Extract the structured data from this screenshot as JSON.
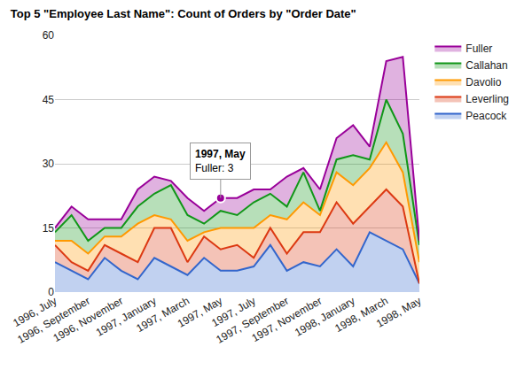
{
  "chart_data": {
    "type": "area",
    "title": "Top 5 \"Employee Last Name\": Count of Orders by \"Order Date\"",
    "stacked": true,
    "grid": true,
    "legend": "right",
    "categories": [
      "1996, July",
      null,
      "1996, September",
      null,
      "1996, November",
      null,
      "1997, January",
      null,
      "1997, March",
      null,
      "1997, May",
      null,
      "1997, July",
      null,
      "1997, September",
      null,
      "1997, November",
      null,
      "1998, January",
      null,
      "1998, March",
      null,
      "1998, May"
    ],
    "series": [
      {
        "name": "Peacock",
        "color": "#3366cc",
        "values": [
          7,
          5,
          3,
          8,
          5,
          3,
          8,
          6,
          4,
          8,
          5,
          5,
          6,
          11,
          5,
          7,
          6,
          10,
          6,
          14,
          12,
          10,
          2
        ]
      },
      {
        "name": "Leverling",
        "color": "#dc3912",
        "values": [
          4,
          2,
          2,
          3,
          4,
          4,
          7,
          9,
          3,
          5,
          5,
          6,
          2,
          4,
          4,
          7,
          8,
          11,
          10,
          6,
          12,
          10,
          0
        ]
      },
      {
        "name": "Davolio",
        "color": "#ff9900",
        "values": [
          1,
          5,
          4,
          2,
          4,
          9,
          3,
          2,
          5,
          1,
          5,
          4,
          7,
          3,
          8,
          7,
          4,
          7,
          9,
          9,
          11,
          8,
          5
        ]
      },
      {
        "name": "Callahan",
        "color": "#109618",
        "values": [
          2,
          6,
          3,
          2,
          2,
          4,
          5,
          8,
          6,
          2,
          4,
          3,
          6,
          5,
          3,
          7,
          1,
          3,
          7,
          2,
          10,
          9,
          4
        ]
      },
      {
        "name": "Fuller",
        "color": "#990099",
        "values": [
          1,
          2,
          5,
          2,
          2,
          4,
          4,
          1,
          4,
          3,
          3,
          4,
          3,
          1,
          7,
          1,
          5,
          5,
          7,
          3,
          9,
          18,
          1
        ]
      }
    ],
    "ylim": [
      0,
      60
    ],
    "yticks": [
      0,
      15,
      30,
      45,
      60
    ],
    "tooltip": {
      "category": "1997, May",
      "series": "Fuller",
      "title": "1997, May",
      "text": "Fuller: 3"
    }
  }
}
